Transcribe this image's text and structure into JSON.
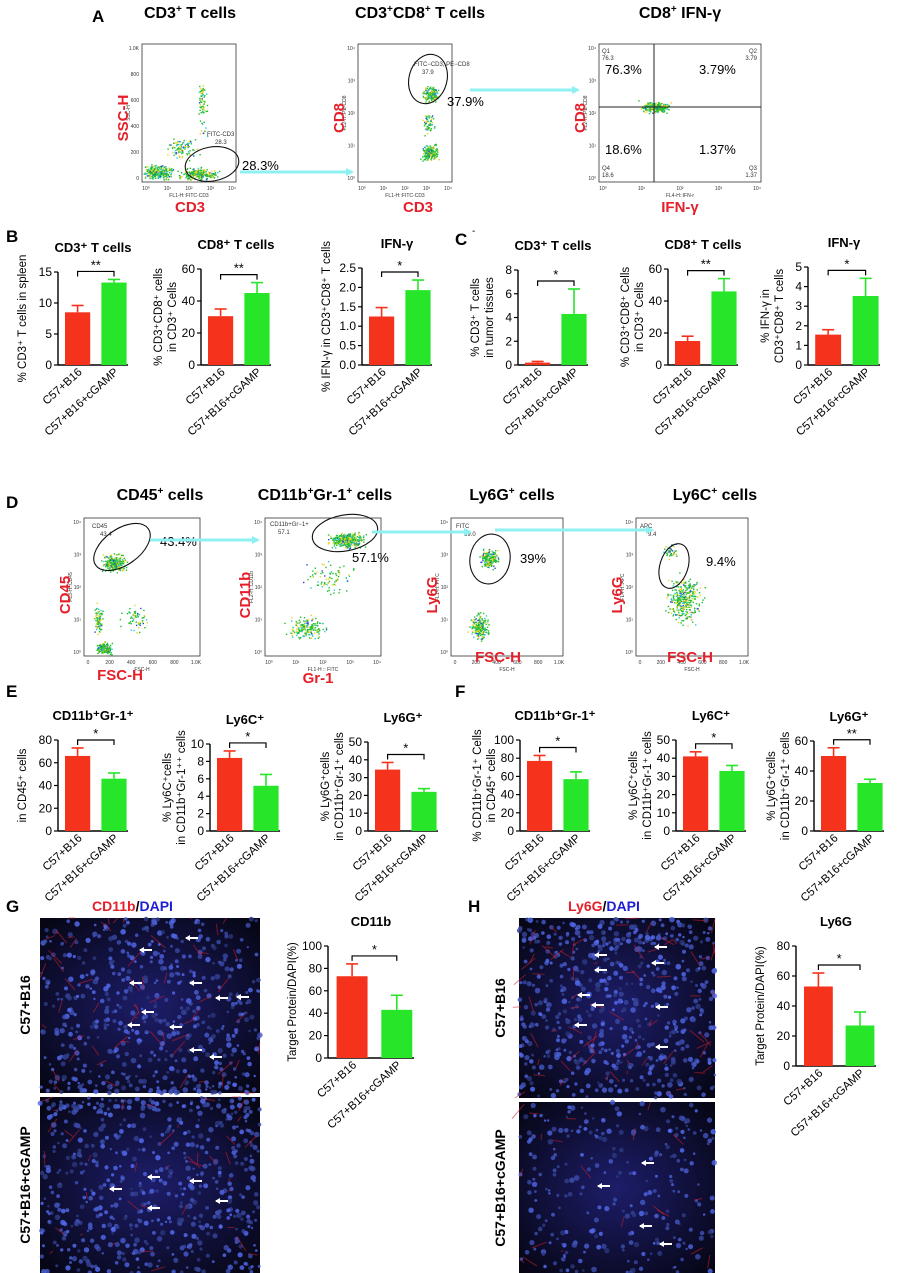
{
  "colors": {
    "red": "#f5321c",
    "green": "#27e62a",
    "arrow": "#8ff0f2",
    "label_red": "#e5202a",
    "dapi": "#1d1dd6"
  },
  "panelA": {
    "letter": "A",
    "plots": [
      {
        "title": "CD3",
        "sup": "+",
        "title_rest": " T cells",
        "ylab": "SSC-H",
        "xlab": "CD3",
        "gate": "FITC-CD3",
        "gate_val": "28.3",
        "pct": "28.3%",
        "yaxis": "SSC-H",
        "xaxis": "FL1-H::FITC-CD3",
        "yticks": [
          "1.0K",
          "800",
          "600",
          "400",
          "200",
          "0"
        ],
        "xticks": [
          "10⁰",
          "10¹",
          "10²",
          "10³",
          "10⁴"
        ]
      },
      {
        "title": "CD3",
        "sup": "+",
        "title_mid": "CD8",
        "sup2": "+",
        "title_rest": " T cells",
        "ylab": "CD8",
        "xlab": "CD3",
        "gate": "FITC−CD3, PE−CD8",
        "gate_val": "37.9",
        "pct": "37.9%",
        "yaxis": "FL2-H::PE-CD8",
        "xaxis": "FL1-H::FITC-CD3",
        "yticks": [
          "10⁴",
          "10³",
          "10²",
          "10¹",
          "10⁰"
        ],
        "xticks": [
          "10⁰",
          "10¹",
          "10²",
          "10³",
          "10⁴"
        ]
      },
      {
        "title": "CD8",
        "sup": "+",
        "title_rest": " IFN-γ",
        "ylab": "CD8",
        "xlab": "IFN-γ",
        "q1": "Q1",
        "q1v": "76.3",
        "q2": "Q2",
        "q2v": "3.79",
        "q3": "Q3",
        "q3v": "1.37",
        "q4": "Q4",
        "q4v": "18.6",
        "p1": "76.3%",
        "p2": "3.79%",
        "p3": "18.6%",
        "p4": "1.37%",
        "yaxis": "FL2-H::PE-CD8",
        "xaxis": "FL4-H::IFN-r",
        "yticks": [
          "10⁴",
          "10³",
          "10²",
          "10¹",
          "10⁰"
        ],
        "xticks": [
          "10⁰",
          "10¹",
          "10²",
          "10³",
          "10⁴"
        ]
      }
    ]
  },
  "panelD": {
    "letter": "D",
    "plots": [
      {
        "title": "CD45",
        "sup": "+",
        "title_rest": " cells",
        "ylab": "CD45",
        "xlab": "FSC-H",
        "gate": "CD45",
        "gate_val": "43.4",
        "pct": "43.4%",
        "yaxis": "FL3-H::CD45",
        "xaxis": "FSC-H",
        "yticks": [
          "10⁴",
          "10³",
          "10²",
          "10¹",
          "10⁰"
        ],
        "xticks": [
          "0",
          "200",
          "400",
          "600",
          "800",
          "1.0K"
        ]
      },
      {
        "title": "CD11b",
        "sup": "+",
        "title_mid": "Gr-1",
        "sup2": "+",
        "title_rest": " cells",
        "ylab": "CD11b",
        "xlab": "Gr-1",
        "gate": "CD11b+Gr−1+",
        "gate_val": "57.1",
        "pct": "57.1%",
        "yaxis": "FL2-H::CD11b",
        "xaxis": "FL1-H :: FITC",
        "yticks": [
          "10⁴",
          "10³",
          "10²",
          "10¹",
          "10⁰"
        ],
        "xticks": [
          "10⁰",
          "10¹",
          "10²",
          "10³",
          "10⁴"
        ]
      },
      {
        "title": "Ly6G",
        "sup": "+",
        "title_rest": " cells",
        "ylab": "Ly6G",
        "xlab": "FSC-H",
        "gate": "FITC",
        "gate_val": "39.0",
        "pct": "39%",
        "yaxis": "FL1-H::FITC",
        "xaxis": "FSC-H",
        "yticks": [
          "10⁴",
          "10³",
          "10²",
          "10¹",
          "10⁰"
        ],
        "xticks": [
          "0",
          "200",
          "400",
          "600",
          "800",
          "1.0K"
        ]
      },
      {
        "title": "Ly6C",
        "sup": "+",
        "title_rest": " cells",
        "ylab": "Ly6G",
        "xlab": "FSC-H",
        "gate": "APC",
        "gate_val": "9.4",
        "pct": "9.4%",
        "yaxis": "FL4-H::APC",
        "xaxis": "FSC-H",
        "yticks": [
          "10⁴",
          "10³",
          "10²",
          "10¹",
          "10⁰"
        ],
        "xticks": [
          "0",
          "200",
          "400",
          "600",
          "800",
          "1.0K"
        ]
      }
    ]
  },
  "panelG": {
    "letter": "G",
    "label": "CD11b",
    "sep": "/",
    "dapi": "DAPI",
    "row1": "C57+B16",
    "row2": "C57+B16+cGAMP"
  },
  "panelH": {
    "letter": "H",
    "label": "Ly6G",
    "sep": "/",
    "dapi": "DAPI",
    "row1": "C57+B16",
    "row2": "C57+B16+cGAMP"
  },
  "chart_data": [
    {
      "id": "B1",
      "panel": "B",
      "type": "bar",
      "title": "CD3⁺ T cells",
      "ylabel": [
        "% CD3⁺ T cells in spleen"
      ],
      "categories": [
        "C57+B16",
        "C57+B16+cGAMP"
      ],
      "values": [
        8.5,
        13.3
      ],
      "errors": [
        1.1,
        0.5
      ],
      "ylim": [
        0,
        15
      ],
      "yticks": [
        "0",
        "5",
        "10",
        "15"
      ],
      "sig": "**"
    },
    {
      "id": "B2",
      "type": "bar",
      "title": "CD8⁺ T cells",
      "ylabel": [
        "% CD3⁺CD8⁺ cells",
        "in CD3⁺ Cells"
      ],
      "categories": [
        "C57+B16",
        "C57+B16+cGAMP"
      ],
      "values": [
        30.5,
        45
      ],
      "errors": [
        4.5,
        6.5
      ],
      "ylim": [
        0,
        60
      ],
      "yticks": [
        "0",
        "20",
        "40",
        "60"
      ],
      "sig": "**"
    },
    {
      "id": "B3",
      "type": "bar",
      "title": "IFN-γ",
      "ylabel": [
        "% IFN-γ in CD3⁺CD8⁺ T cells"
      ],
      "categories": [
        "C57+B16",
        "C57+B16+cGAMP"
      ],
      "values": [
        1.25,
        1.93
      ],
      "errors": [
        0.23,
        0.26
      ],
      "ylim": [
        0,
        2.5
      ],
      "yticks": [
        "0.0",
        "0.5",
        "1.0",
        "1.5",
        "2.0",
        "2.5"
      ],
      "sig": "*"
    },
    {
      "id": "C1",
      "panel": "C",
      "type": "bar",
      "title": "CD3⁺ T cells",
      "ylabel": [
        "% CD3⁺ T cells",
        "in tumor tissues"
      ],
      "categories": [
        "C57+B16",
        "C57+B16+cGAMP"
      ],
      "values": [
        0.2,
        4.3
      ],
      "errors": [
        0.1,
        2.1
      ],
      "ylim": [
        0,
        8
      ],
      "yticks": [
        "0",
        "2",
        "4",
        "6",
        "8"
      ],
      "sig": "*"
    },
    {
      "id": "C2",
      "type": "bar",
      "title": "CD8⁺ T cells",
      "ylabel": [
        "% CD3⁺CD8⁺ Cells",
        "in CD3⁺ Cells"
      ],
      "categories": [
        "C57+B16",
        "C57+B16+cGAMP"
      ],
      "values": [
        15,
        46
      ],
      "errors": [
        3,
        8
      ],
      "ylim": [
        0,
        60
      ],
      "yticks": [
        "0",
        "20",
        "40",
        "60"
      ],
      "sig": "**"
    },
    {
      "id": "C3",
      "type": "bar",
      "title": "IFN-γ",
      "ylabel": [
        "% IFN-γ in",
        "CD3⁺CD8⁺ T cells"
      ],
      "categories": [
        "C57+B16",
        "C57+B16+cGAMP"
      ],
      "values": [
        1.55,
        3.52
      ],
      "errors": [
        0.25,
        0.9
      ],
      "ylim": [
        0,
        5
      ],
      "yticks": [
        "0",
        "1",
        "2",
        "3",
        "4",
        "5"
      ],
      "sig": "*"
    },
    {
      "id": "E1",
      "panel": "E",
      "type": "bar",
      "title": "CD11b⁺Gr-1⁺",
      "ylabel": [
        "in CD45⁺ cells"
      ],
      "categories": [
        "C57+B16",
        "C57+B16+cGAMP"
      ],
      "values": [
        66,
        46
      ],
      "errors": [
        7,
        5
      ],
      "ylim": [
        0,
        80
      ],
      "yticks": [
        "0",
        "20",
        "40",
        "60",
        "80"
      ],
      "sig": "*"
    },
    {
      "id": "E2",
      "type": "bar",
      "title": "Ly6C⁺",
      "ylabel": [
        "% Ly6C⁺cells",
        "in CD11b⁺Gr-1⁺⁺ cells"
      ],
      "categories": [
        "C57+B16",
        "C57+B16+cGAMP"
      ],
      "values": [
        8.4,
        5.2
      ],
      "errors": [
        0.8,
        1.3
      ],
      "ylim": [
        0,
        10
      ],
      "yticks": [
        "0",
        "2",
        "4",
        "6",
        "8",
        "10"
      ],
      "sig": "*"
    },
    {
      "id": "E3",
      "type": "bar",
      "title": "Ly6G⁺",
      "ylabel": [
        "% Ly6G⁺cells",
        "in CD11b⁺Gr-1⁺ cells"
      ],
      "categories": [
        "C57+B16",
        "C57+B16+cGAMP"
      ],
      "values": [
        34.5,
        22
      ],
      "errors": [
        4,
        1.8
      ],
      "ylim": [
        0,
        50
      ],
      "yticks": [
        "0",
        "10",
        "20",
        "30",
        "40",
        "50"
      ],
      "sig": "*"
    },
    {
      "id": "F1",
      "panel": "F",
      "type": "bar",
      "title": "CD11b⁺Gr-1⁺",
      "ylabel": [
        "% CD11b⁺Gr-1⁺ Cells",
        "in CD45⁺ cells"
      ],
      "categories": [
        "C57+B16",
        "C57+B16+cGAMP"
      ],
      "values": [
        77,
        57
      ],
      "errors": [
        6,
        8
      ],
      "ylim": [
        0,
        100
      ],
      "yticks": [
        "0",
        "20",
        "40",
        "60",
        "80",
        "100"
      ],
      "sig": "*"
    },
    {
      "id": "F2",
      "type": "bar",
      "title": "Ly6C⁺",
      "ylabel": [
        "% Ly6C⁺cells",
        "in CD11b⁺Gr-1⁺ cells"
      ],
      "categories": [
        "C57+B16",
        "C57+B16+cGAMP"
      ],
      "values": [
        41,
        33
      ],
      "errors": [
        2.5,
        3
      ],
      "ylim": [
        0,
        50
      ],
      "yticks": [
        "0",
        "10",
        "20",
        "30",
        "40",
        "50"
      ],
      "sig": "*"
    },
    {
      "id": "F3",
      "type": "bar",
      "title": "Ly6G⁺",
      "ylabel": [
        "% Ly6G⁺cells",
        "in CD11b⁺Gr-1⁺ cells"
      ],
      "categories": [
        "C57+B16",
        "C57+B16+cGAMP"
      ],
      "values": [
        50,
        32
      ],
      "errors": [
        5.5,
        2.5
      ],
      "ylim": [
        0,
        60
      ],
      "yticks": [
        "0",
        "20",
        "40",
        "60"
      ],
      "sig": "**"
    },
    {
      "id": "G1",
      "type": "bar",
      "title": "CD11b",
      "ylabel": [
        "Target Protein/DAPI(%)"
      ],
      "categories": [
        "C57+B16",
        "C57+B16+cGAMP"
      ],
      "values": [
        73,
        43
      ],
      "errors": [
        11,
        13
      ],
      "ylim": [
        0,
        100
      ],
      "yticks": [
        "0",
        "20",
        "40",
        "60",
        "80",
        "100"
      ],
      "sig": "*"
    },
    {
      "id": "H1",
      "type": "bar",
      "title": "Ly6G",
      "ylabel": [
        "Target Protein/DAPI(%)"
      ],
      "categories": [
        "C57+B16",
        "C57+B16+cGAMP"
      ],
      "values": [
        53,
        27
      ],
      "errors": [
        9,
        9
      ],
      "ylim": [
        0,
        80
      ],
      "yticks": [
        "0",
        "20",
        "40",
        "60",
        "80"
      ],
      "sig": "*"
    }
  ]
}
